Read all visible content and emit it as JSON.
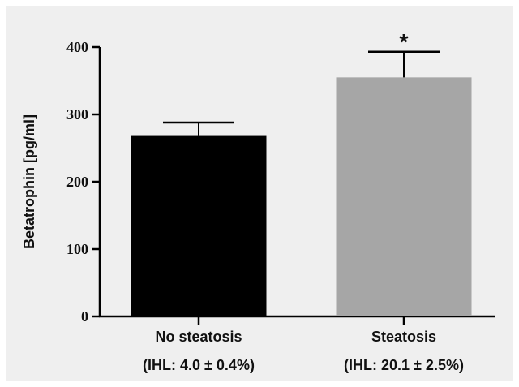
{
  "chart_data": {
    "type": "bar",
    "title": "",
    "xlabel": "",
    "ylabel": "Betatrophin [pg/ml]",
    "ylim": [
      0,
      400
    ],
    "yticks": [
      0,
      100,
      200,
      300,
      400
    ],
    "grid": false,
    "legend": "none",
    "categories": [
      "No steatosis",
      "Steatosis"
    ],
    "category_sublabels": [
      "(IHL: 4.0 ± 0.4%)",
      "(IHL: 20.1 ± 2.5%)"
    ],
    "values": [
      268,
      355
    ],
    "errors": [
      20,
      38
    ],
    "bar_colors": [
      "#000000",
      "#a6a6a6"
    ],
    "annotations": [
      {
        "category": "Steatosis",
        "text": "*"
      }
    ]
  }
}
